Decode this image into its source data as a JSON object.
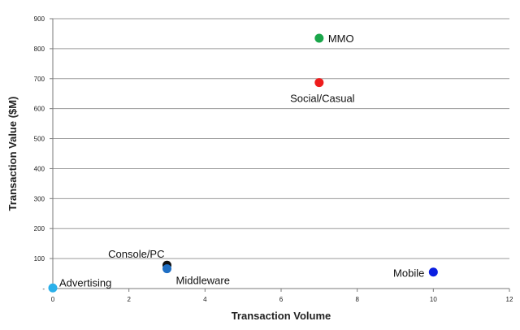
{
  "chart_data": {
    "type": "scatter",
    "title": "",
    "xlabel": "Transaction Volume",
    "ylabel": "Transaction Value ($M)",
    "xlim": [
      0,
      12
    ],
    "ylim": [
      0,
      900
    ],
    "x_ticks": [
      0,
      2,
      4,
      6,
      8,
      10,
      12
    ],
    "y_ticks": [
      0,
      100,
      200,
      300,
      400,
      500,
      600,
      700,
      800,
      900
    ],
    "y_tick_labels": [
      "-",
      "100",
      "200",
      "300",
      "400",
      "500",
      "600",
      "700",
      "800",
      "900"
    ],
    "grid": "horizontal",
    "legend": "none",
    "points": [
      {
        "label": "MMO",
        "x": 7,
        "y": 835,
        "color": "#1aa64a"
      },
      {
        "label": "Social/Casual",
        "x": 7,
        "y": 687,
        "color": "#ee1c1c"
      },
      {
        "label": "Console/PC",
        "x": 3,
        "y": 78,
        "color": "#111111"
      },
      {
        "label": "Middleware",
        "x": 3,
        "y": 66,
        "color": "#1f6fc4"
      },
      {
        "label": "Mobile",
        "x": 10,
        "y": 55,
        "color": "#0a1ee0"
      },
      {
        "label": "Advertising",
        "x": 0,
        "y": 2,
        "color": "#2ab0ea"
      }
    ]
  }
}
